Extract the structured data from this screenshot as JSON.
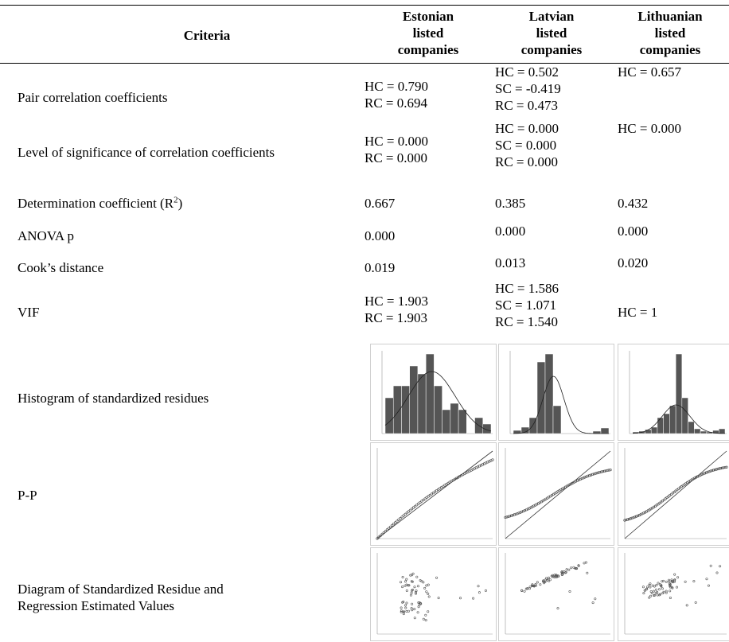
{
  "header": {
    "criteria": "Criteria",
    "estonian": [
      "Estonian",
      "listed",
      "companies"
    ],
    "latvian": [
      "Latvian",
      "listed",
      "companies"
    ],
    "lithuanian": [
      "Lithuanian",
      "listed",
      "companies"
    ]
  },
  "rows": {
    "pair": {
      "label": "Pair correlation coefficients",
      "estonian": [
        "HC = 0.790",
        "RC = 0.694"
      ],
      "latvian": [
        "HC = 0.502",
        "SC = -0.419",
        "RC = 0.473"
      ],
      "lithuanian": [
        "HC = 0.657"
      ]
    },
    "significance": {
      "label": "Level of significance of correlation coefficients",
      "estonian": [
        "HC = 0.000",
        "RC = 0.000"
      ],
      "latvian": [
        "HC = 0.000",
        "SC = 0.000",
        "RC = 0.000"
      ],
      "lithuanian": [
        "HC = 0.000"
      ]
    },
    "determination": {
      "label": "Determination coefficient (R",
      "label_sup": "2",
      "label_end": ")",
      "estonian": "0.667",
      "latvian": "0.385",
      "lithuanian": "0.432"
    },
    "anova": {
      "label": "ANOVA p",
      "estonian": "0.000",
      "latvian": "0.000",
      "lithuanian": "0.000"
    },
    "cook": {
      "label": "Cook’s distance",
      "estonian": "0.019",
      "latvian": "0.013",
      "lithuanian": "0.020"
    },
    "vif": {
      "label": "VIF",
      "estonian": [
        "HC = 1.903",
        "RC = 1.903"
      ],
      "latvian": [
        "HC = 1.586",
        "SC = 1.071",
        "RC = 1.540"
      ],
      "lithuanian": [
        "HC = 1"
      ]
    },
    "histogram": {
      "label": "Histogram of standardized residues"
    },
    "pp": {
      "label": "P-P"
    },
    "scatter": {
      "label": [
        "Diagram of Standardized Residue and",
        "Regression Estimated Values"
      ]
    }
  },
  "chart_data": [
    {
      "type": "bar",
      "panel": "histogram-estonian",
      "values": [
        0.45,
        0.6,
        0.6,
        0.85,
        0.75,
        1.0,
        0.6,
        0.3,
        0.38,
        0.3,
        0,
        0.2,
        0.12
      ]
    },
    {
      "type": "bar",
      "panel": "histogram-latvian",
      "values": [
        0.04,
        0.08,
        0.2,
        0.9,
        1.0,
        0.35,
        0,
        0,
        0,
        0,
        0.03,
        0.07
      ]
    },
    {
      "type": "bar",
      "panel": "histogram-lithuanian",
      "values": [
        0.02,
        0.03,
        0.05,
        0.08,
        0.2,
        0.25,
        0.35,
        1.0,
        0.45,
        0.15,
        0.06,
        0.03,
        0.02,
        0.04,
        0.06
      ]
    }
  ]
}
